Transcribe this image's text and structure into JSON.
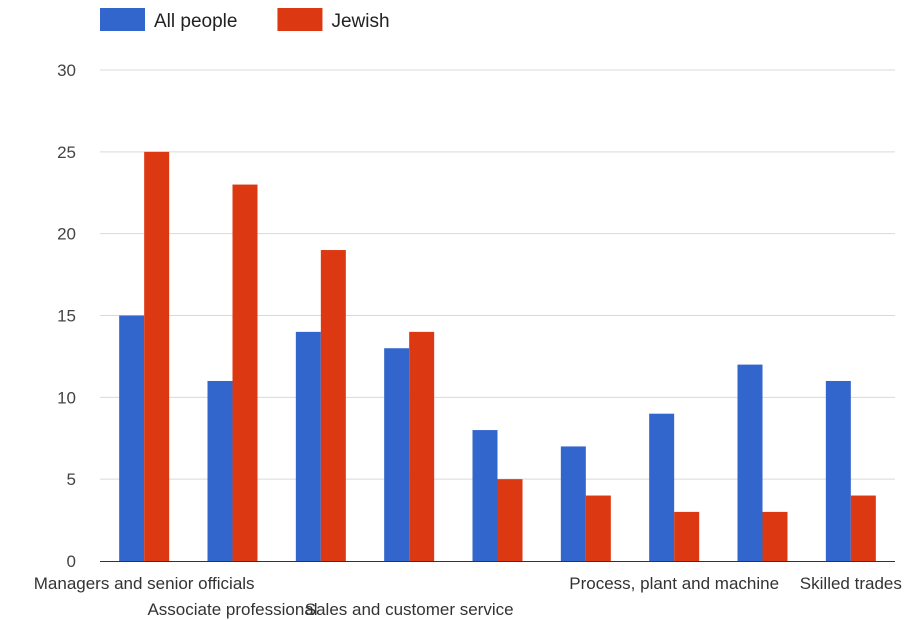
{
  "chart_data": {
    "type": "bar",
    "categories": [
      "Managers and senior officials",
      "Associate professional",
      "",
      "Sales and customer service",
      "",
      "",
      "Process, plant and machine",
      "",
      "Skilled trades"
    ],
    "series": [
      {
        "name": "All people",
        "color": "#3366cc",
        "values": [
          15,
          11,
          14,
          13,
          8,
          7,
          9,
          12,
          11
        ]
      },
      {
        "name": "Jewish",
        "color": "#dc3912",
        "values": [
          25,
          23,
          19,
          14,
          5,
          4,
          3,
          3,
          4
        ]
      }
    ],
    "title": "",
    "xlabel": "",
    "ylabel": "",
    "ylim": [
      0,
      30
    ],
    "yticks": [
      0,
      5,
      10,
      15,
      20,
      25,
      30
    ],
    "grid": true,
    "legend": "top-left"
  }
}
